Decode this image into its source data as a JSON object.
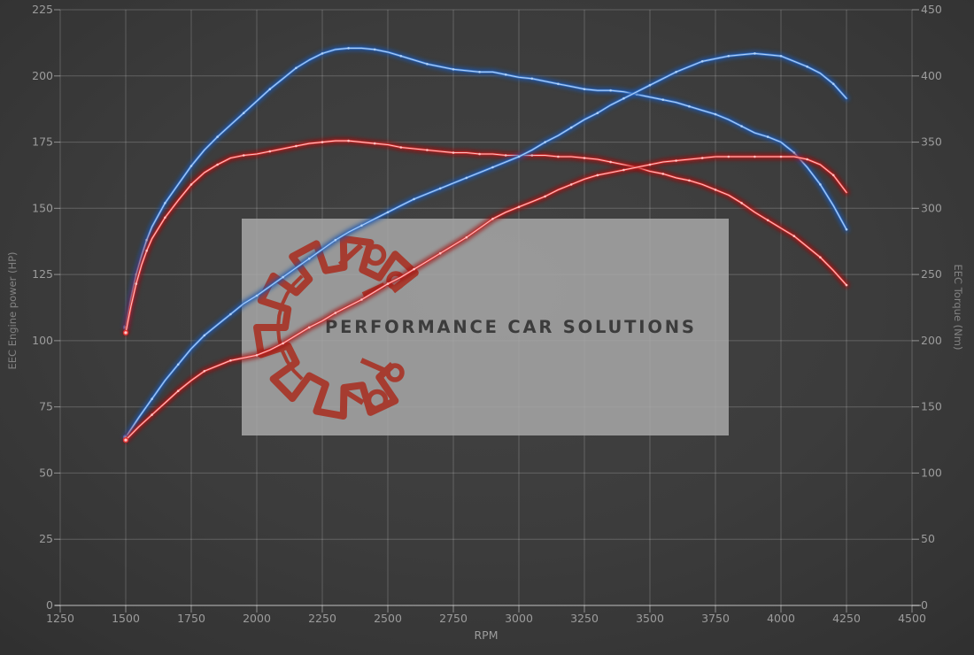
{
  "watermark": {
    "title": "PERFORMANCE CAR SOLUTIONS",
    "box_color": "#a8a8a8",
    "box_opacity": 0.85,
    "logo_color": "#a63c30",
    "text_color": "#3c3c3c"
  },
  "chart_data": {
    "type": "line",
    "xlabel": "RPM",
    "x_axis": {
      "min": 1250,
      "max": 4500,
      "ticks": [
        1250,
        1500,
        1750,
        2000,
        2250,
        2500,
        2750,
        3000,
        3250,
        3500,
        3750,
        4000,
        4250,
        4500
      ]
    },
    "y_left": {
      "label": "EEC Engine power (HP)",
      "min": 0,
      "max": 225,
      "ticks": [
        0,
        25,
        50,
        75,
        100,
        125,
        150,
        175,
        200,
        225
      ]
    },
    "y_right": {
      "label": "EEC Torque (Nm)",
      "min": 0,
      "max": 450,
      "ticks": [
        0,
        50,
        100,
        150,
        200,
        250,
        300,
        350,
        400,
        450
      ]
    },
    "grid": true,
    "legend": "none",
    "style": {
      "grid_color": "rgba(255,255,255,0.20)",
      "axis_line_color": "rgba(255,255,255,0.55)",
      "tick_color": "rgba(255,255,255,0.45)",
      "tick_label_color": "#9c9c9c",
      "axis_title_color": "#828282"
    },
    "series": [
      {
        "name": "torque-blue",
        "axis": "right",
        "unit": "Nm",
        "color": "#3d7cd6",
        "core": "#b5d4f7",
        "glow": "#1d55a8",
        "points": [
          [
            1500,
            210
          ],
          [
            1520,
            232
          ],
          [
            1540,
            250
          ],
          [
            1560,
            264
          ],
          [
            1580,
            276
          ],
          [
            1600,
            286
          ],
          [
            1650,
            304
          ],
          [
            1700,
            318
          ],
          [
            1750,
            332
          ],
          [
            1800,
            344
          ],
          [
            1850,
            354
          ],
          [
            1900,
            363
          ],
          [
            1950,
            372
          ],
          [
            2000,
            381
          ],
          [
            2050,
            390
          ],
          [
            2100,
            398
          ],
          [
            2150,
            406
          ],
          [
            2200,
            412
          ],
          [
            2250,
            417
          ],
          [
            2300,
            420
          ],
          [
            2350,
            421
          ],
          [
            2400,
            421
          ],
          [
            2450,
            420
          ],
          [
            2500,
            418
          ],
          [
            2550,
            415
          ],
          [
            2600,
            412
          ],
          [
            2650,
            409
          ],
          [
            2700,
            407
          ],
          [
            2750,
            405
          ],
          [
            2800,
            404
          ],
          [
            2850,
            403
          ],
          [
            2900,
            403
          ],
          [
            2950,
            401
          ],
          [
            3000,
            399
          ],
          [
            3050,
            398
          ],
          [
            3100,
            396
          ],
          [
            3150,
            394
          ],
          [
            3200,
            392
          ],
          [
            3250,
            390
          ],
          [
            3300,
            389
          ],
          [
            3350,
            389
          ],
          [
            3400,
            388
          ],
          [
            3450,
            386
          ],
          [
            3500,
            384
          ],
          [
            3550,
            382
          ],
          [
            3600,
            380
          ],
          [
            3650,
            377
          ],
          [
            3700,
            374
          ],
          [
            3750,
            371
          ],
          [
            3800,
            367
          ],
          [
            3850,
            362
          ],
          [
            3900,
            357
          ],
          [
            3950,
            354
          ],
          [
            4000,
            350
          ],
          [
            4050,
            342
          ],
          [
            4100,
            331
          ],
          [
            4150,
            318
          ],
          [
            4200,
            302
          ],
          [
            4250,
            284
          ]
        ]
      },
      {
        "name": "torque-red",
        "axis": "right",
        "unit": "Nm",
        "color": "#e03434",
        "core": "#ffc9c9",
        "glow": "#a01010",
        "points": [
          [
            1500,
            206
          ],
          [
            1520,
            226
          ],
          [
            1540,
            243
          ],
          [
            1560,
            257
          ],
          [
            1580,
            268
          ],
          [
            1600,
            277
          ],
          [
            1650,
            293
          ],
          [
            1700,
            306
          ],
          [
            1750,
            318
          ],
          [
            1800,
            327
          ],
          [
            1850,
            333
          ],
          [
            1900,
            338
          ],
          [
            1950,
            340
          ],
          [
            2000,
            341
          ],
          [
            2050,
            343
          ],
          [
            2100,
            345
          ],
          [
            2150,
            347
          ],
          [
            2200,
            349
          ],
          [
            2250,
            350
          ],
          [
            2300,
            351
          ],
          [
            2350,
            351
          ],
          [
            2400,
            350
          ],
          [
            2450,
            349
          ],
          [
            2500,
            348
          ],
          [
            2550,
            346
          ],
          [
            2600,
            345
          ],
          [
            2650,
            344
          ],
          [
            2700,
            343
          ],
          [
            2750,
            342
          ],
          [
            2800,
            342
          ],
          [
            2850,
            341
          ],
          [
            2900,
            341
          ],
          [
            2950,
            340
          ],
          [
            3000,
            340
          ],
          [
            3050,
            340
          ],
          [
            3100,
            340
          ],
          [
            3150,
            339
          ],
          [
            3200,
            339
          ],
          [
            3250,
            338
          ],
          [
            3300,
            337
          ],
          [
            3350,
            335
          ],
          [
            3400,
            333
          ],
          [
            3450,
            331
          ],
          [
            3500,
            328
          ],
          [
            3550,
            326
          ],
          [
            3600,
            323
          ],
          [
            3650,
            321
          ],
          [
            3700,
            318
          ],
          [
            3750,
            314
          ],
          [
            3800,
            310
          ],
          [
            3850,
            304
          ],
          [
            3900,
            297
          ],
          [
            3950,
            291
          ],
          [
            4000,
            285
          ],
          [
            4050,
            279
          ],
          [
            4100,
            271
          ],
          [
            4150,
            263
          ],
          [
            4200,
            253
          ],
          [
            4250,
            242
          ]
        ]
      },
      {
        "name": "power-blue",
        "axis": "left",
        "unit": "HP",
        "color": "#3d7cd6",
        "core": "#b5d4f7",
        "glow": "#1d55a8",
        "points": [
          [
            1500,
            63.5
          ],
          [
            1550,
            71
          ],
          [
            1600,
            78
          ],
          [
            1650,
            85
          ],
          [
            1700,
            91
          ],
          [
            1750,
            97
          ],
          [
            1800,
            102
          ],
          [
            1850,
            106
          ],
          [
            1900,
            110
          ],
          [
            1950,
            114
          ],
          [
            2000,
            117
          ],
          [
            2050,
            120.5
          ],
          [
            2100,
            124
          ],
          [
            2150,
            127.5
          ],
          [
            2200,
            131
          ],
          [
            2250,
            134.5
          ],
          [
            2300,
            138
          ],
          [
            2350,
            141
          ],
          [
            2400,
            143.5
          ],
          [
            2450,
            146
          ],
          [
            2500,
            148.5
          ],
          [
            2550,
            151
          ],
          [
            2600,
            153.5
          ],
          [
            2650,
            155.5
          ],
          [
            2700,
            157.5
          ],
          [
            2750,
            159.5
          ],
          [
            2800,
            161.5
          ],
          [
            2850,
            163.5
          ],
          [
            2900,
            165.5
          ],
          [
            2950,
            167.5
          ],
          [
            3000,
            169.5
          ],
          [
            3050,
            172
          ],
          [
            3100,
            175
          ],
          [
            3150,
            177.5
          ],
          [
            3200,
            180.5
          ],
          [
            3250,
            183.5
          ],
          [
            3300,
            186
          ],
          [
            3350,
            189
          ],
          [
            3400,
            191.5
          ],
          [
            3450,
            194
          ],
          [
            3500,
            196.5
          ],
          [
            3550,
            199
          ],
          [
            3600,
            201.5
          ],
          [
            3650,
            203.5
          ],
          [
            3700,
            205.5
          ],
          [
            3750,
            206.5
          ],
          [
            3800,
            207.5
          ],
          [
            3850,
            208
          ],
          [
            3900,
            208.5
          ],
          [
            3950,
            208
          ],
          [
            4000,
            207.5
          ],
          [
            4050,
            205.5
          ],
          [
            4100,
            203.5
          ],
          [
            4150,
            201
          ],
          [
            4200,
            197
          ],
          [
            4250,
            191.5
          ]
        ]
      },
      {
        "name": "power-red",
        "axis": "left",
        "unit": "HP",
        "color": "#e03434",
        "core": "#ffc9c9",
        "glow": "#a01010",
        "points": [
          [
            1500,
            62.5
          ],
          [
            1550,
            67.5
          ],
          [
            1600,
            72
          ],
          [
            1650,
            76.5
          ],
          [
            1700,
            81
          ],
          [
            1750,
            85
          ],
          [
            1800,
            88.5
          ],
          [
            1850,
            90.5
          ],
          [
            1900,
            92.5
          ],
          [
            1950,
            93.5
          ],
          [
            2000,
            94.5
          ],
          [
            2050,
            96.5
          ],
          [
            2100,
            99
          ],
          [
            2150,
            102
          ],
          [
            2200,
            105
          ],
          [
            2250,
            107.5
          ],
          [
            2300,
            110.5
          ],
          [
            2350,
            113
          ],
          [
            2400,
            115.5
          ],
          [
            2450,
            118.5
          ],
          [
            2500,
            121.5
          ],
          [
            2550,
            124
          ],
          [
            2600,
            127
          ],
          [
            2650,
            130
          ],
          [
            2700,
            133
          ],
          [
            2750,
            136
          ],
          [
            2800,
            139
          ],
          [
            2850,
            142.5
          ],
          [
            2900,
            146
          ],
          [
            2950,
            148.5
          ],
          [
            3000,
            150.5
          ],
          [
            3050,
            152.5
          ],
          [
            3100,
            154.5
          ],
          [
            3150,
            157
          ],
          [
            3200,
            159
          ],
          [
            3250,
            161
          ],
          [
            3300,
            162.5
          ],
          [
            3350,
            163.5
          ],
          [
            3400,
            164.5
          ],
          [
            3450,
            165.5
          ],
          [
            3500,
            166.5
          ],
          [
            3550,
            167.5
          ],
          [
            3600,
            168
          ],
          [
            3650,
            168.5
          ],
          [
            3700,
            169
          ],
          [
            3750,
            169.5
          ],
          [
            3800,
            169.5
          ],
          [
            3850,
            169.5
          ],
          [
            3900,
            169.5
          ],
          [
            3950,
            169.5
          ],
          [
            4000,
            169.5
          ],
          [
            4050,
            169.5
          ],
          [
            4100,
            168.5
          ],
          [
            4150,
            166.5
          ],
          [
            4200,
            162.5
          ],
          [
            4250,
            156
          ]
        ]
      }
    ]
  }
}
